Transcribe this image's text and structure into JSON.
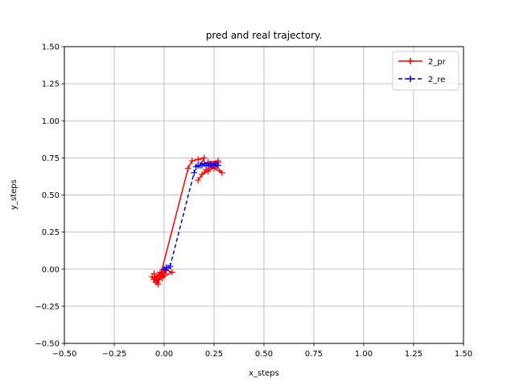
{
  "chart_data": {
    "type": "line",
    "title": "pred and real trajectory.",
    "xlabel": "x_steps",
    "ylabel": "y_steps",
    "xlim": [
      -0.5,
      1.5
    ],
    "ylim": [
      -0.5,
      1.5
    ],
    "xticks": [
      -0.5,
      -0.25,
      0.0,
      0.25,
      0.5,
      0.75,
      1.0,
      1.25,
      1.5
    ],
    "yticks": [
      -0.5,
      -0.25,
      0.0,
      0.25,
      0.5,
      0.75,
      1.0,
      1.25,
      1.5
    ],
    "xtick_labels": [
      "−0.50",
      "−0.25",
      "0.00",
      "0.25",
      "0.50",
      "0.75",
      "1.00",
      "1.25",
      "1.50"
    ],
    "ytick_labels": [
      "−0.50",
      "−0.25",
      "0.00",
      "0.25",
      "0.50",
      "0.75",
      "1.00",
      "1.25",
      "1.50"
    ],
    "grid": true,
    "legend_position": "top-right",
    "series": [
      {
        "name": "2_pr",
        "color": "#ff0000",
        "line_style": "solid",
        "marker": "+",
        "x": [
          -0.06,
          -0.04,
          -0.05,
          -0.03,
          -0.05,
          -0.02,
          -0.04,
          -0.01,
          -0.03,
          0.0,
          -0.02,
          0.01,
          -0.01,
          0.04,
          0.0,
          -0.05,
          -0.03,
          0.12,
          0.14,
          0.17,
          0.2,
          0.18,
          0.22,
          0.27,
          0.25,
          0.29,
          0.26,
          0.22,
          0.19,
          0.17,
          0.21,
          0.24,
          0.22,
          0.27,
          0.23
        ],
        "y": [
          -0.05,
          -0.08,
          -0.03,
          -0.1,
          -0.06,
          -0.02,
          -0.09,
          -0.04,
          -0.07,
          -0.03,
          -0.05,
          -0.01,
          -0.06,
          -0.02,
          0.0,
          -0.07,
          -0.1,
          0.68,
          0.73,
          0.74,
          0.75,
          0.7,
          0.72,
          0.73,
          0.68,
          0.65,
          0.7,
          0.66,
          0.64,
          0.6,
          0.67,
          0.69,
          0.71,
          0.72,
          0.7
        ]
      },
      {
        "name": "2_re",
        "color": "#0000ff",
        "line_style": "dashed",
        "marker": "+",
        "x": [
          0.0,
          0.01,
          0.02,
          0.03,
          0.15,
          0.16,
          0.17,
          0.18,
          0.19,
          0.2,
          0.21,
          0.22,
          0.23,
          0.24,
          0.25,
          0.26,
          0.27
        ],
        "y": [
          0.0,
          0.01,
          0.01,
          0.02,
          0.65,
          0.69,
          0.7,
          0.7,
          0.7,
          0.71,
          0.7,
          0.7,
          0.71,
          0.7,
          0.7,
          0.71,
          0.7
        ]
      }
    ]
  }
}
